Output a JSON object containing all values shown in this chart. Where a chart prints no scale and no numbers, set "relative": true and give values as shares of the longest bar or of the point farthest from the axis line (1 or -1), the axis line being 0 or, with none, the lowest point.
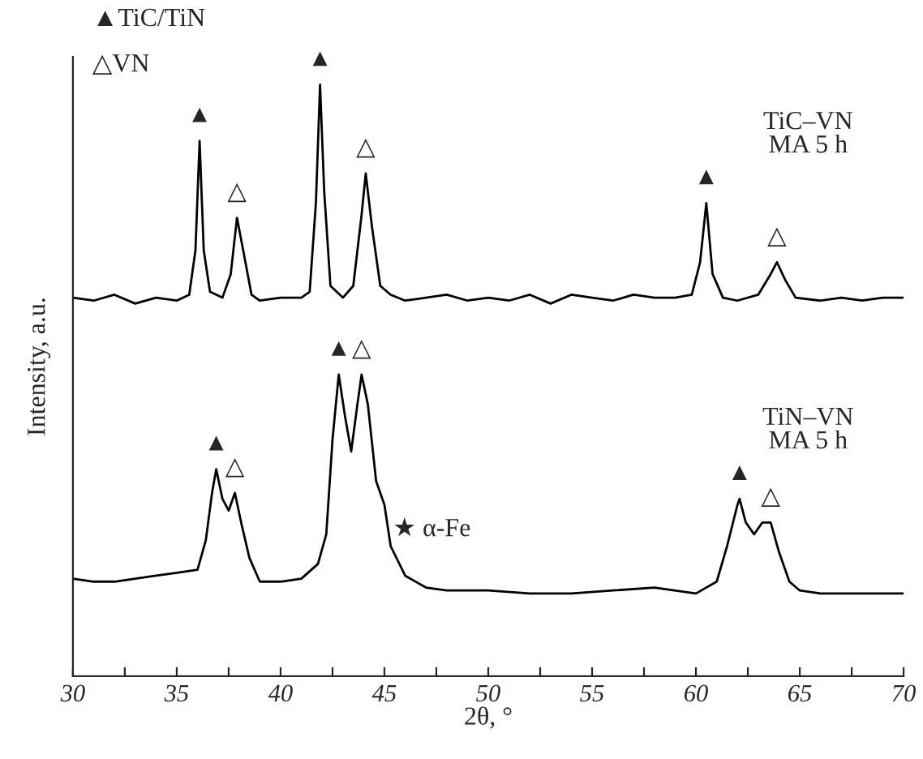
{
  "chart_data": {
    "type": "line",
    "relative": true,
    "xlabel": "2θ, °",
    "ylabel": "Intensity, a.u.",
    "legend": false,
    "grid": false,
    "marker": "none",
    "line_style": "solid",
    "tick_labels": "x",
    "xlim": [
      30,
      70
    ],
    "xticks": [
      30,
      {
        "value": 32.5,
        "label": null
      },
      35,
      {
        "value": 37.5,
        "label": null
      },
      40,
      {
        "value": 42.5,
        "label": null
      },
      45,
      {
        "value": 47.5,
        "label": null
      },
      50,
      {
        "value": 52.5,
        "label": null
      },
      55,
      {
        "value": 57.5,
        "label": null
      },
      60,
      {
        "value": 62.5,
        "label": null
      },
      65,
      {
        "value": 67.5,
        "label": null
      },
      70
    ],
    "series": [
      {
        "name": "TiC–VN\nMA 5 h",
        "color": "#000000",
        "x": [
          30,
          31,
          32,
          33,
          34,
          35,
          35.6,
          35.9,
          36.1,
          36.3,
          36.6,
          37.2,
          37.6,
          37.9,
          38.2,
          38.6,
          39,
          40,
          41,
          41.4,
          41.7,
          41.9,
          42.1,
          42.4,
          43,
          43.5,
          43.9,
          44.1,
          44.4,
          44.8,
          45.3,
          46,
          47,
          48,
          49,
          50,
          51,
          52,
          53,
          54,
          55,
          56,
          57,
          58,
          59,
          59.8,
          60.2,
          60.5,
          60.8,
          61.3,
          62,
          63,
          63.6,
          63.9,
          64.3,
          64.8,
          66,
          67,
          68,
          69,
          70
        ],
        "values": [
          0.64,
          0.635,
          0.645,
          0.63,
          0.64,
          0.635,
          0.645,
          0.72,
          0.905,
          0.72,
          0.65,
          0.64,
          0.68,
          0.775,
          0.72,
          0.645,
          0.635,
          0.64,
          0.64,
          0.65,
          0.8,
          1.0,
          0.82,
          0.66,
          0.64,
          0.66,
          0.78,
          0.85,
          0.76,
          0.66,
          0.645,
          0.635,
          0.64,
          0.645,
          0.635,
          0.64,
          0.635,
          0.645,
          0.63,
          0.645,
          0.64,
          0.635,
          0.645,
          0.64,
          0.64,
          0.645,
          0.7,
          0.8,
          0.68,
          0.64,
          0.635,
          0.645,
          0.68,
          0.7,
          0.67,
          0.64,
          0.635,
          0.64,
          0.635,
          0.64,
          0.64
        ]
      },
      {
        "name": "TiN–VN\nMA 5 h",
        "color": "#000000",
        "x": [
          30,
          31,
          32,
          33,
          34,
          35,
          36,
          36.4,
          36.7,
          36.9,
          37.2,
          37.5,
          37.8,
          38.1,
          38.5,
          39,
          40,
          41,
          41.8,
          42.2,
          42.5,
          42.8,
          43.1,
          43.4,
          43.7,
          43.9,
          44.2,
          44.6,
          45,
          45.3,
          46,
          47,
          48,
          50,
          52,
          54,
          56,
          58,
          60,
          61,
          61.5,
          62,
          62.1,
          62.4,
          62.8,
          63.2,
          63.6,
          64,
          64.5,
          65,
          66,
          67,
          68,
          69,
          70
        ],
        "values": [
          0.165,
          0.16,
          0.16,
          0.165,
          0.17,
          0.175,
          0.18,
          0.23,
          0.31,
          0.35,
          0.3,
          0.28,
          0.31,
          0.26,
          0.2,
          0.16,
          0.16,
          0.165,
          0.19,
          0.24,
          0.4,
          0.51,
          0.44,
          0.38,
          0.46,
          0.51,
          0.46,
          0.33,
          0.29,
          0.22,
          0.17,
          0.15,
          0.145,
          0.145,
          0.14,
          0.14,
          0.145,
          0.15,
          0.14,
          0.16,
          0.22,
          0.29,
          0.3,
          0.26,
          0.24,
          0.26,
          0.26,
          0.21,
          0.16,
          0.145,
          0.14,
          0.14,
          0.14,
          0.14,
          0.14
        ]
      }
    ],
    "annotations": [
      "▲TiC/TiN",
      "△VN",
      {
        "text": "▲",
        "x": 36.1,
        "y": 0.905
      },
      {
        "text": "△",
        "x": 37.9,
        "y": 0.775
      },
      {
        "text": "▲",
        "x": 41.9,
        "y": 1.0
      },
      {
        "text": "△",
        "x": 44.1,
        "y": 0.85
      },
      {
        "text": "▲",
        "x": 60.5,
        "y": 0.8
      },
      {
        "text": "△",
        "x": 63.9,
        "y": 0.7
      },
      {
        "text": "▲",
        "x": 36.9,
        "y": 0.35
      },
      {
        "text": "△",
        "x": 37.8,
        "y": 0.31
      },
      {
        "text": "▲",
        "x": 42.8,
        "y": 0.51
      },
      {
        "text": "△",
        "x": 43.9,
        "y": 0.51
      },
      {
        "text": "★ α-Fe",
        "x": 45.3,
        "y": 0.22
      },
      {
        "text": "▲",
        "x": 62.1,
        "y": 0.3
      },
      {
        "text": "△",
        "x": 63.6,
        "y": 0.26
      }
    ]
  }
}
